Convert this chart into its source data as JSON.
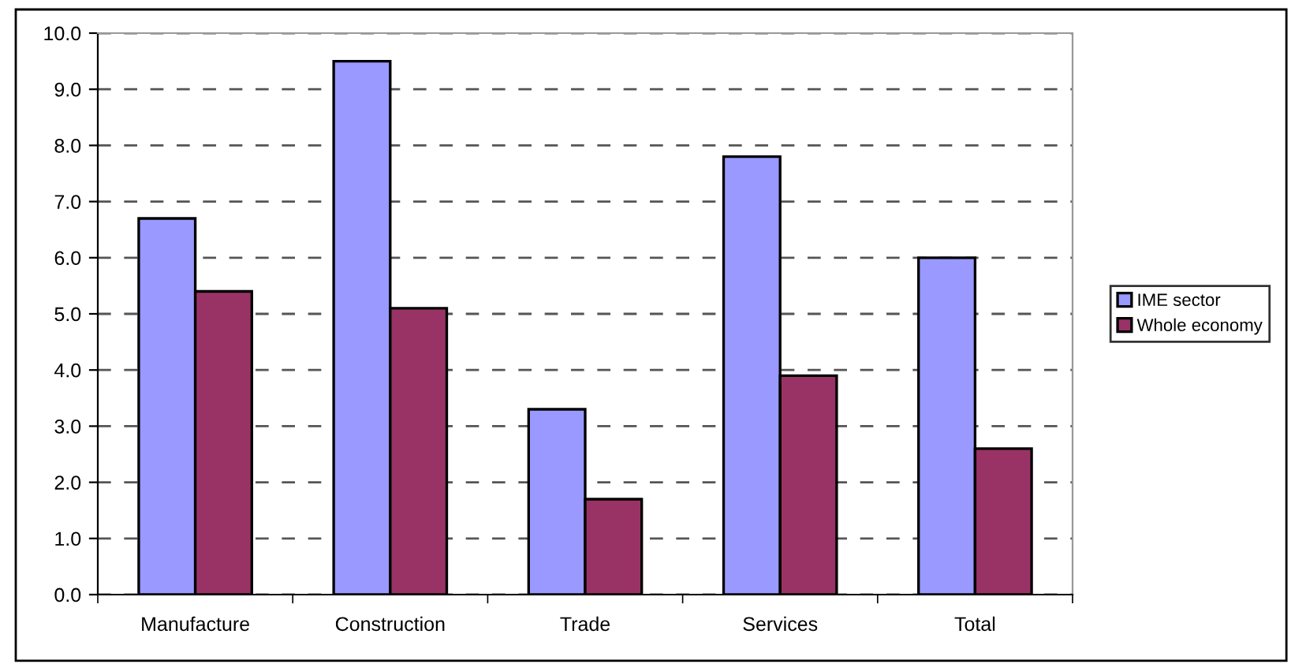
{
  "chart_data": {
    "type": "bar",
    "categories": [
      "Manufacture",
      "Construction",
      "Trade",
      "Services",
      "Total"
    ],
    "series": [
      {
        "name": "IME sector",
        "color": "#9999ff",
        "values": [
          6.7,
          9.5,
          3.3,
          7.8,
          6.0
        ]
      },
      {
        "name": "Whole economy",
        "color": "#993366",
        "values": [
          5.4,
          5.1,
          1.7,
          3.9,
          2.6
        ]
      }
    ],
    "ylim": [
      0,
      10
    ],
    "yticks": [
      {
        "value": 0,
        "label": "0.0"
      },
      {
        "value": 1,
        "label": "1.0"
      },
      {
        "value": 2,
        "label": "2.0"
      },
      {
        "value": 3,
        "label": "3.0"
      },
      {
        "value": 4,
        "label": "4.0"
      },
      {
        "value": 5,
        "label": "5.0"
      },
      {
        "value": 6,
        "label": "6.0"
      },
      {
        "value": 7,
        "label": "7.0"
      },
      {
        "value": 8,
        "label": "8.0"
      },
      {
        "value": 9,
        "label": "9.0"
      },
      {
        "value": 10,
        "label": "10.0"
      }
    ],
    "grid": "y",
    "legend": "right"
  }
}
